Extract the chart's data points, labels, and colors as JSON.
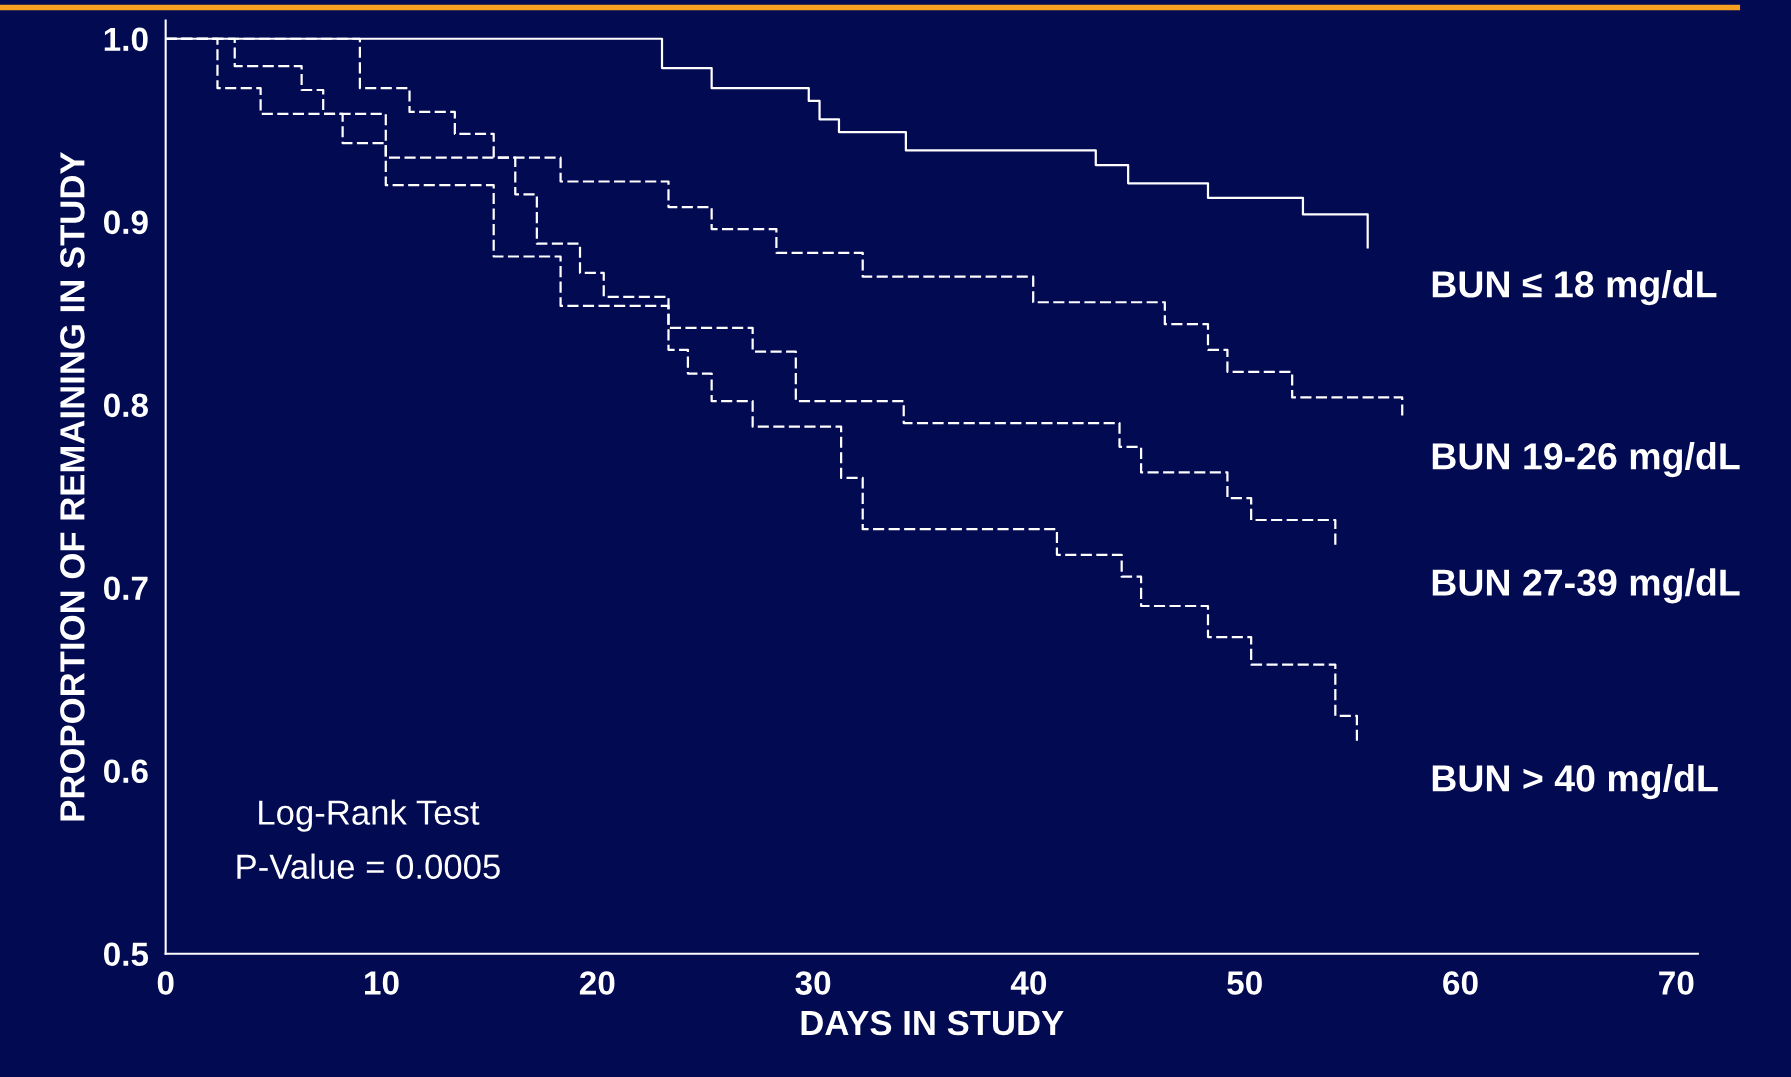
{
  "chart_data": {
    "type": "step",
    "xlabel": "DAYS IN STUDY",
    "ylabel": "PROPORTION OF REMAINING IN STUDY",
    "xlim": [
      0,
      71
    ],
    "xticks": [
      0,
      10,
      20,
      30,
      40,
      50,
      60,
      70
    ],
    "ylim": [
      0.5,
      1.01
    ],
    "yticks": [
      0.5,
      0.6,
      0.7,
      0.8,
      0.9,
      {
        "value": 1.0,
        "label": "1.0"
      }
    ],
    "grid": false,
    "legend": false,
    "marker": "none",
    "annotations": [
      "Log-Rank Test",
      "P-Value = 0.0005"
    ],
    "series": [
      {
        "name": "BUN ≤ 18 mg/dL",
        "color": "#ffffff",
        "line_style": "solid",
        "x": [
          0,
          23.0,
          25.3,
          29.8,
          30.3,
          31.2,
          34.3,
          43.1,
          44.6,
          48.3,
          52.7,
          55.7
        ],
        "values": [
          1.0,
          0.984,
          0.973,
          0.966,
          0.956,
          0.949,
          0.939,
          0.931,
          0.921,
          0.913,
          0.904,
          0.886
        ]
      },
      {
        "name": "BUN 19-26 mg/dL",
        "color": "#ffffff",
        "line_style": "dashed",
        "x": [
          0,
          9.0,
          11.3,
          13.4,
          15.2,
          18.3,
          23.3,
          25.3,
          28.3,
          32.3,
          40.2,
          46.3,
          48.3,
          49.2,
          52.2,
          57.3
        ],
        "values": [
          1.0,
          0.973,
          0.96,
          0.948,
          0.935,
          0.922,
          0.908,
          0.896,
          0.883,
          0.87,
          0.856,
          0.844,
          0.83,
          0.818,
          0.804,
          0.792
        ]
      },
      {
        "name": "BUN 27-39 mg/dL",
        "color": "#ffffff",
        "line_style": "dashed",
        "x": [
          0,
          2.4,
          4.4,
          8.2,
          10.2,
          15.2,
          18.3,
          23.3,
          27.2,
          29.2,
          34.2,
          44.2,
          45.2,
          49.2,
          50.3,
          54.2
        ],
        "values": [
          1.0,
          0.973,
          0.959,
          0.943,
          0.92,
          0.881,
          0.854,
          0.842,
          0.829,
          0.802,
          0.79,
          0.777,
          0.763,
          0.749,
          0.737,
          0.723
        ]
      },
      {
        "name": "BUN > 40 mg/dL",
        "color": "#ffffff",
        "line_style": "dashed",
        "x": [
          0,
          3.2,
          6.3,
          7.3,
          10.2,
          16.2,
          17.2,
          19.2,
          20.3,
          23.3,
          24.2,
          25.3,
          27.2,
          31.3,
          32.3,
          41.3,
          44.3,
          45.2,
          48.3,
          50.3,
          54.2,
          55.2
        ],
        "values": [
          1.0,
          0.985,
          0.972,
          0.959,
          0.935,
          0.915,
          0.888,
          0.872,
          0.859,
          0.83,
          0.817,
          0.802,
          0.788,
          0.76,
          0.732,
          0.718,
          0.706,
          0.69,
          0.673,
          0.658,
          0.63,
          0.616
        ]
      }
    ]
  }
}
